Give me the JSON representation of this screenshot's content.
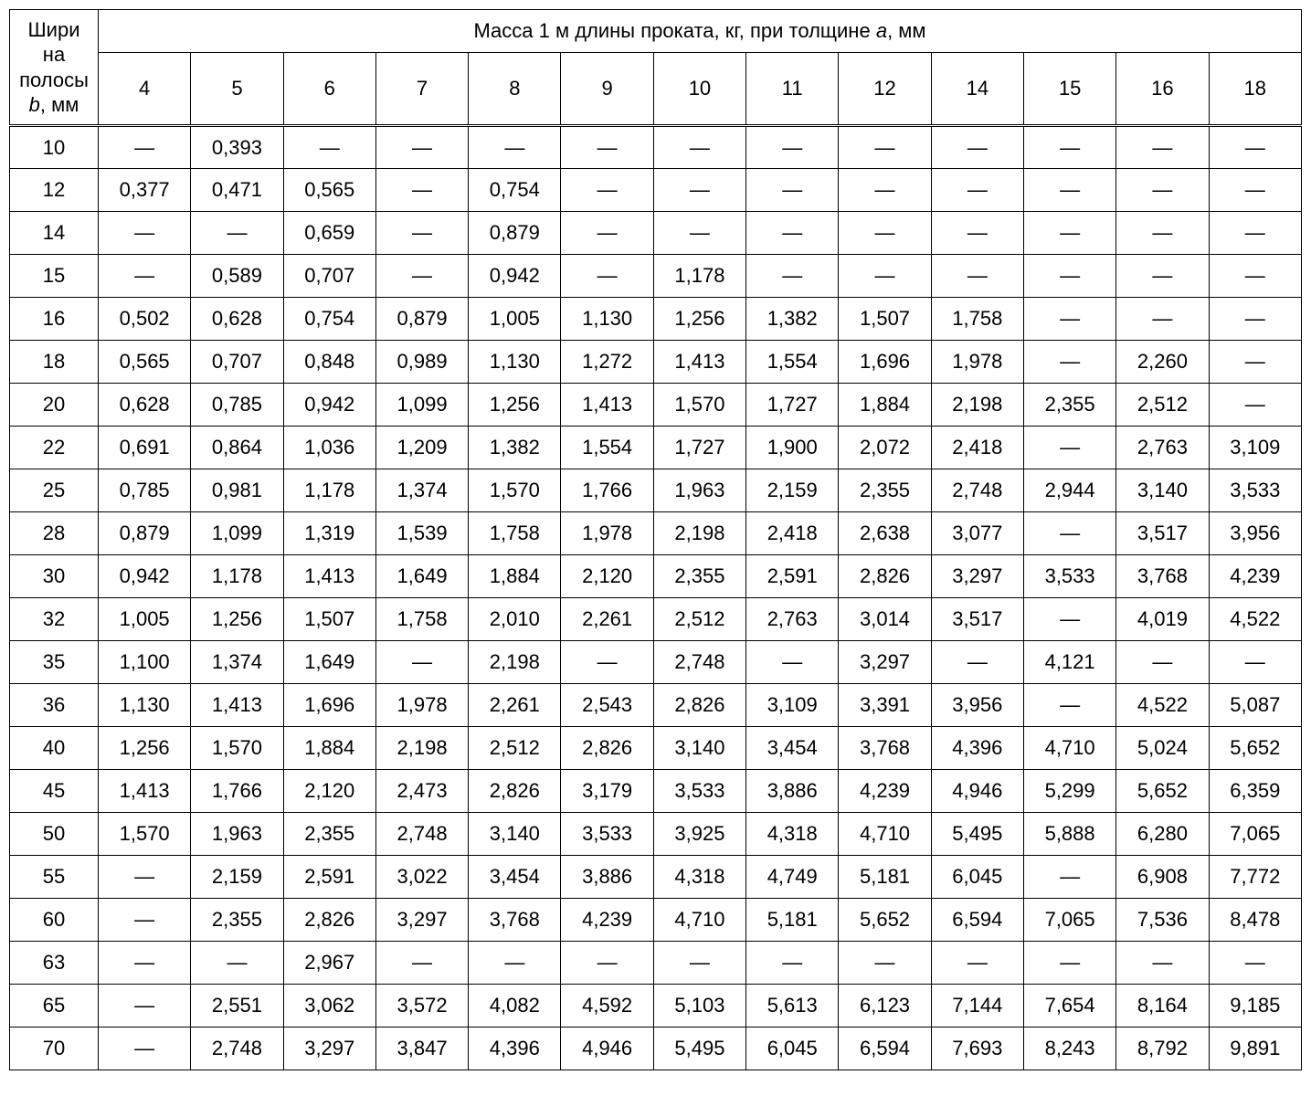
{
  "table": {
    "type": "table",
    "background_color": "#ffffff",
    "border_color": "#000000",
    "font_size_pt": 16,
    "row_header_label_html": "Шири<br>на<br>полосы<br><span class=\"i\">b</span>, мм",
    "span_header_label_html": "Масса 1 м длины проката, кг, при толщине <span class=\"i\">a</span>, мм",
    "thickness_columns": [
      "4",
      "5",
      "6",
      "7",
      "8",
      "9",
      "10",
      "11",
      "12",
      "14",
      "15",
      "16",
      "18"
    ],
    "dash": "—",
    "widths_b": [
      "10",
      "12",
      "14",
      "15",
      "16",
      "18",
      "20",
      "22",
      "25",
      "28",
      "30",
      "32",
      "35",
      "36",
      "40",
      "45",
      "50",
      "55",
      "60",
      "63",
      "65",
      "70"
    ],
    "rows": [
      [
        "—",
        "0,393",
        "—",
        "—",
        "—",
        "—",
        "—",
        "—",
        "—",
        "—",
        "—",
        "—",
        "—"
      ],
      [
        "0,377",
        "0,471",
        "0,565",
        "—",
        "0,754",
        "—",
        "—",
        "—",
        "—",
        "—",
        "—",
        "—",
        "—"
      ],
      [
        "—",
        "—",
        "0,659",
        "—",
        "0,879",
        "—",
        "—",
        "—",
        "—",
        "—",
        "—",
        "—",
        "—"
      ],
      [
        "—",
        "0,589",
        "0,707",
        "—",
        "0,942",
        "—",
        "1,178",
        "—",
        "—",
        "—",
        "—",
        "—",
        "—"
      ],
      [
        "0,502",
        "0,628",
        "0,754",
        "0,879",
        "1,005",
        "1,130",
        "1,256",
        "1,382",
        "1,507",
        "1,758",
        "—",
        "—",
        "—"
      ],
      [
        "0,565",
        "0,707",
        "0,848",
        "0,989",
        "1,130",
        "1,272",
        "1,413",
        "1,554",
        "1,696",
        "1,978",
        "—",
        "2,260",
        "—"
      ],
      [
        "0,628",
        "0,785",
        "0,942",
        "1,099",
        "1,256",
        "1,413",
        "1,570",
        "1,727",
        "1,884",
        "2,198",
        "2,355",
        "2,512",
        "—"
      ],
      [
        "0,691",
        "0,864",
        "1,036",
        "1,209",
        "1,382",
        "1,554",
        "1,727",
        "1,900",
        "2,072",
        "2,418",
        "—",
        "2,763",
        "3,109"
      ],
      [
        "0,785",
        "0,981",
        "1,178",
        "1,374",
        "1,570",
        "1,766",
        "1,963",
        "2,159",
        "2,355",
        "2,748",
        "2,944",
        "3,140",
        "3,533"
      ],
      [
        "0,879",
        "1,099",
        "1,319",
        "1,539",
        "1,758",
        "1,978",
        "2,198",
        "2,418",
        "2,638",
        "3,077",
        "—",
        "3,517",
        "3,956"
      ],
      [
        "0,942",
        "1,178",
        "1,413",
        "1,649",
        "1,884",
        "2,120",
        "2,355",
        "2,591",
        "2,826",
        "3,297",
        "3,533",
        "3,768",
        "4,239"
      ],
      [
        "1,005",
        "1,256",
        "1,507",
        "1,758",
        "2,010",
        "2,261",
        "2,512",
        "2,763",
        "3,014",
        "3,517",
        "—",
        "4,019",
        "4,522"
      ],
      [
        "1,100",
        "1,374",
        "1,649",
        "—",
        "2,198",
        "—",
        "2,748",
        "—",
        "3,297",
        "—",
        "4,121",
        "—",
        "—"
      ],
      [
        "1,130",
        "1,413",
        "1,696",
        "1,978",
        "2,261",
        "2,543",
        "2,826",
        "3,109",
        "3,391",
        "3,956",
        "—",
        "4,522",
        "5,087"
      ],
      [
        "1,256",
        "1,570",
        "1,884",
        "2,198",
        "2,512",
        "2,826",
        "3,140",
        "3,454",
        "3,768",
        "4,396",
        "4,710",
        "5,024",
        "5,652"
      ],
      [
        "1,413",
        "1,766",
        "2,120",
        "2,473",
        "2,826",
        "3,179",
        "3,533",
        "3,886",
        "4,239",
        "4,946",
        "5,299",
        "5,652",
        "6,359"
      ],
      [
        "1,570",
        "1,963",
        "2,355",
        "2,748",
        "3,140",
        "3,533",
        "3,925",
        "4,318",
        "4,710",
        "5,495",
        "5,888",
        "6,280",
        "7,065"
      ],
      [
        "—",
        "2,159",
        "2,591",
        "3,022",
        "3,454",
        "3,886",
        "4,318",
        "4,749",
        "5,181",
        "6,045",
        "—",
        "6,908",
        "7,772"
      ],
      [
        "—",
        "2,355",
        "2,826",
        "3,297",
        "3,768",
        "4,239",
        "4,710",
        "5,181",
        "5,652",
        "6,594",
        "7,065",
        "7,536",
        "8,478"
      ],
      [
        "—",
        "—",
        "2,967",
        "—",
        "—",
        "—",
        "—",
        "—",
        "—",
        "—",
        "—",
        "—",
        "—"
      ],
      [
        "—",
        "2,551",
        "3,062",
        "3,572",
        "4,082",
        "4,592",
        "5,103",
        "5,613",
        "6,123",
        "7,144",
        "7,654",
        "8,164",
        "9,185"
      ],
      [
        "—",
        "2,748",
        "3,297",
        "3,847",
        "4,396",
        "4,946",
        "5,495",
        "6,045",
        "6,594",
        "7,693",
        "8,243",
        "8,792",
        "9,891"
      ]
    ]
  }
}
